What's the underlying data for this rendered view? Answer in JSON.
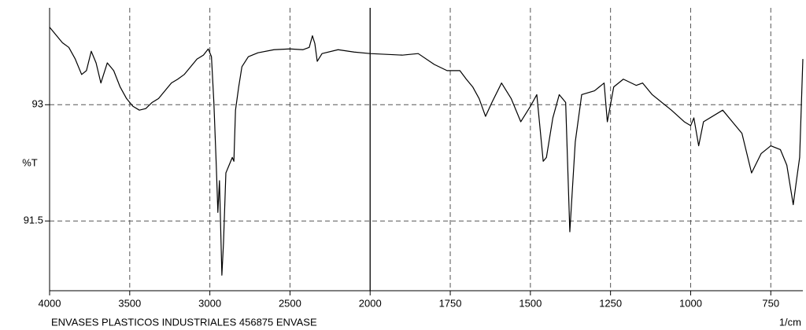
{
  "chart_data": {
    "type": "line",
    "ylabel": "%T",
    "xlabel": "1/cm",
    "footer": "ENVASES PLASTICOS INDUSTRIALES  456875  ENVASE",
    "x": [
      4000,
      3960,
      3920,
      3880,
      3840,
      3800,
      3770,
      3740,
      3710,
      3680,
      3640,
      3600,
      3560,
      3520,
      3480,
      3440,
      3400,
      3360,
      3320,
      3280,
      3240,
      3200,
      3160,
      3120,
      3080,
      3040,
      3010,
      2990,
      2975,
      2960,
      2950,
      2940,
      2925,
      2915,
      2900,
      2880,
      2860,
      2850,
      2840,
      2820,
      2800,
      2760,
      2700,
      2600,
      2500,
      2420,
      2380,
      2360,
      2345,
      2330,
      2300,
      2200,
      2100,
      2000,
      1900,
      1850,
      1800,
      1760,
      1720,
      1700,
      1680,
      1660,
      1640,
      1620,
      1590,
      1560,
      1530,
      1500,
      1480,
      1460,
      1450,
      1430,
      1410,
      1390,
      1377,
      1360,
      1340,
      1300,
      1270,
      1260,
      1240,
      1210,
      1170,
      1150,
      1120,
      1060,
      1020,
      1000,
      990,
      975,
      960,
      900,
      870,
      840,
      810,
      780,
      750,
      720,
      700,
      680,
      670,
      660,
      650
    ],
    "values": [
      94.0,
      93.9,
      93.8,
      93.74,
      93.59,
      93.39,
      93.44,
      93.69,
      93.54,
      93.28,
      93.54,
      93.44,
      93.23,
      93.08,
      92.98,
      92.93,
      92.95,
      93.03,
      93.08,
      93.18,
      93.28,
      93.33,
      93.39,
      93.49,
      93.59,
      93.64,
      93.72,
      93.62,
      93.03,
      92.22,
      91.61,
      92.02,
      90.8,
      91.21,
      92.12,
      92.22,
      92.32,
      92.27,
      92.93,
      93.23,
      93.49,
      93.62,
      93.67,
      93.71,
      93.72,
      93.71,
      93.74,
      93.89,
      93.79,
      93.56,
      93.66,
      93.71,
      93.68,
      93.66,
      93.64,
      93.66,
      93.52,
      93.44,
      93.44,
      93.33,
      93.23,
      93.08,
      92.85,
      93.03,
      93.28,
      93.08,
      92.78,
      92.98,
      93.13,
      92.27,
      92.32,
      92.83,
      93.13,
      93.03,
      91.36,
      92.52,
      93.13,
      93.18,
      93.28,
      92.78,
      93.23,
      93.33,
      93.25,
      93.28,
      93.13,
      92.93,
      92.78,
      92.73,
      92.83,
      92.47,
      92.78,
      92.93,
      92.78,
      92.63,
      92.12,
      92.37,
      92.47,
      92.42,
      92.22,
      91.71,
      92.02,
      92.32,
      93.59
    ],
    "color": "#000000",
    "xlim": [
      4000,
      650
    ],
    "xticks": [
      4000,
      3500,
      3000,
      2500,
      2000,
      1750,
      1500,
      1250,
      1000,
      750
    ],
    "x_scale_break": 2000,
    "x_scale_factor": 2,
    "ylim": [
      90.6,
      94.25
    ],
    "yticks": [
      91.5,
      93
    ],
    "grid": true
  }
}
